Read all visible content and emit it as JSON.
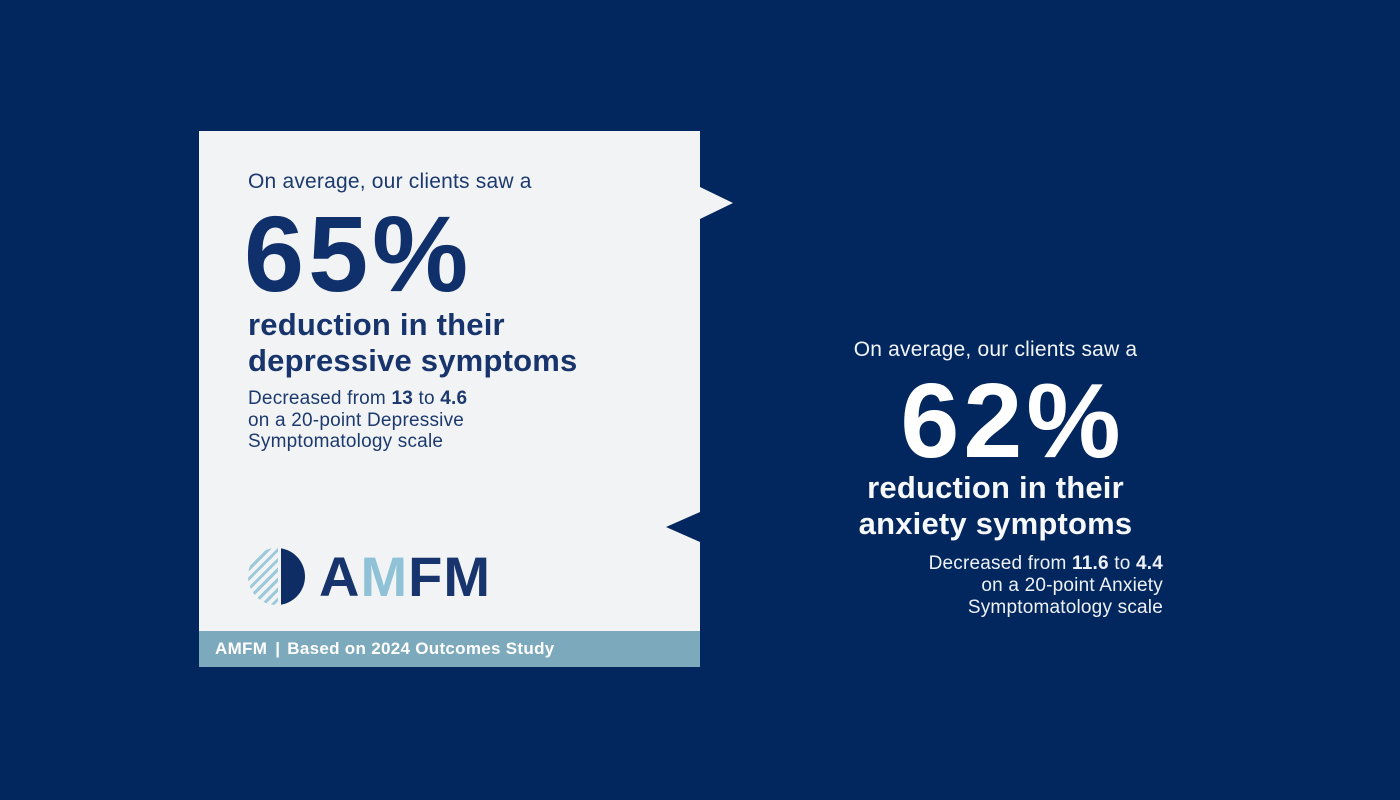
{
  "colors": {
    "background_navy": "#02265e",
    "card_background": "#f2f3f4",
    "navy_text": "#17346c",
    "light_blue_accent": "#8fc2d6",
    "footer_bar": "#7ca9bc",
    "white_text": "#ffffff"
  },
  "left_card": {
    "intro": "On average, our clients saw a",
    "stat": "65%",
    "headline_line1": "reduction in their",
    "headline_line2": "depressive symptoms",
    "detail": {
      "seg1": "Decreased from ",
      "from_value": "13",
      "seg2": " to ",
      "to_value": "4.6",
      "line2": "on a 20-point Depressive",
      "line3": "Symptomatology scale"
    },
    "logo": {
      "mark": "amfm-logo-circle",
      "letters": [
        {
          "char": "A",
          "tone": "navy"
        },
        {
          "char": "M",
          "tone": "light"
        },
        {
          "char": "F",
          "tone": "navy"
        },
        {
          "char": "M",
          "tone": "navy"
        }
      ]
    },
    "footer": {
      "brand": "AMFM",
      "divider": "|",
      "note": "Based on 2024 Outcomes Study"
    }
  },
  "right_block": {
    "intro": "On average, our clients saw a",
    "stat": "62%",
    "headline_line1": "reduction in their",
    "headline_line2": "anxiety symptoms",
    "detail": {
      "seg1": "Decreased from ",
      "from_value": "11.6",
      "seg2": " to ",
      "to_value": "4.4",
      "line2": "on a 20-point Anxiety",
      "line3": "Symptomatology scale"
    }
  }
}
